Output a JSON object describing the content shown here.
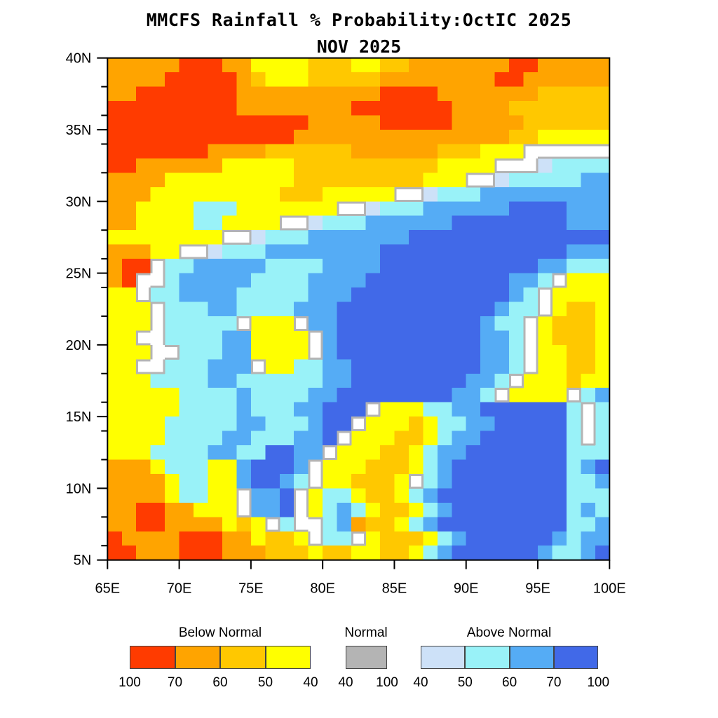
{
  "title": "MMCFS Rainfall % Probability:OctIC 2025",
  "subtitle": "NOV 2025",
  "axes": {
    "x_ticks": [
      "65E",
      "70E",
      "75E",
      "80E",
      "85E",
      "90E",
      "95E",
      "100E"
    ],
    "y_ticks": [
      "40N",
      "35N",
      "30N",
      "25N",
      "20N",
      "15N",
      "10N",
      "5N"
    ]
  },
  "legend": {
    "below": {
      "label": "Below Normal",
      "colors": [
        "#ff3b00",
        "#ffa400",
        "#ffc800",
        "#ffff00"
      ],
      "ticks": [
        "100",
        "70",
        "60",
        "50",
        "40"
      ]
    },
    "normal": {
      "label": "Normal",
      "colors": [
        "#b4b4b4"
      ],
      "ticks": [
        "40",
        "100"
      ]
    },
    "above": {
      "label": "Above Normal",
      "colors": [
        "#cde1f8",
        "#99f2f8",
        "#55acf5",
        "#4169e8"
      ],
      "ticks": [
        "40",
        "50",
        "60",
        "70",
        "100"
      ]
    }
  },
  "chart_data": {
    "type": "heatmap",
    "description": "Filled-contour tercile probability map (percent) of rainfall over the India region. Warm colors = Below Normal probability, gray = Normal, blues = Above Normal. Grid is 1-degree cells, rows from 40N (top) to 5N (bottom), columns 65E to 100E.",
    "lon_range": [
      65,
      100
    ],
    "lat_range": [
      5,
      40
    ],
    "cell_degrees": 1,
    "palette": {
      "R": "#ff3b00",
      "O": "#ffa400",
      "G": "#ffc800",
      "Y": "#ffff00",
      "W": "#ffffff",
      "N": "#b4b4b4",
      "L": "#cde1f8",
      "C": "#99f2f8",
      "B": "#55acf5",
      "D": "#4169e8"
    },
    "palette_meaning": {
      "R": "below normal 70-100%",
      "O": "below normal 60-70%",
      "G": "below normal 50-60%",
      "Y": "below normal 40-50%",
      "W": "no category >= 40%",
      "N": "normal 40-100%",
      "L": "above normal 40-50%",
      "C": "above normal 50-60%",
      "B": "above normal 60-70%",
      "D": "above normal 70-100%"
    },
    "grid": [
      "OOOOORRROOYYYYGGGYYGGOOOOOOORROOOOO",
      "OOOORRRRROGYYYGGGGGOOOOOOOORROOOOOO",
      "OORRRRRRROOOOOOOOOORRRROOOOOOOGGGGG",
      "RRRRRRRRROOOOOOOORRRRRRROOOOGGGGGGG",
      "RRRRRRRRRRRRRROOOOORRRRROOOOOGGGGGG",
      "RRRRRRRRRRRRROOOOOOOOOOOOOOOGGYYYYY",
      "RRRRRRROOOOGGGGGGOOOOOOGGGYYYWWWWWW",
      "RROOOOOOYYYYYGGGGGGGGGGYYYYWWWLCCCC",
      "OOOOYYYYYYYYYGGGGGGGGGYYYWWLCCCCCBB",
      "OOOYYYYYYYYYGGGYYYYYWWLCCCBBBBBBBBB",
      "OOYYYYCCCYYYYYYYWWLCCCBBBBBBDDDDBBB",
      "OOYYYYCCYYYYWWLCCCBBBBBBDDDDDDDDBBB",
      "YYYYYYYYWWLCCCBBBBBBBDDDDDDDDDDDDDD",
      "OOOYYWWLCCCBBBBBBBBDDDDDDDDDDDDDBBB",
      "ORRWCCBBBBBCCCCBBBBDDDDDDDDDDDBBCCC",
      "ORWWCBBBBBCCCCBBBBDDDDDDDDDDBBCWYYY",
      "YYWCCBBBBCCCCCBBBDDDDDDDDDDDBCWYYYY",
      "YYYWCCCBBCCCCBBBDDDDDDDDDDDBCCWYGGY",
      "YYYWCCCCCWYYYWBBDDDDDDDDDDBCCWYGGGY",
      "YYWWCCCCBBYYYYWBDDDDDDDDDDBBCWYGGGY",
      "YYYWWCCCBBYYYYWBDDDDDDDDDDBBCWYYGGY",
      "YYWWCCCBBBWYYCCBBDDDDDDDDDBBCWYYGGY",
      "YYYCCCCBBCCCCCCBBDDDDDDDDBBCWYYYGYY",
      "YYYYYCCCCBCCCCBBDDDDDDDDBBCWYYYYWCB",
      "YYYYYCCCCBCCCBBDDDWYYYCCBBDDDDDDCWC",
      "YYYYCCCCCBBCCCBDDWYYYGYCCBBDDDDDCWC",
      "YYYYCCCCBBCCCBBDWYYYGGYCBBDDDDDDCWC",
      "YYYCCCCBBCCDDBBWYYYGGYCBBDDDDDDDCCC",
      "OOOYCCCYYBDDDBWYYYGGGYCBDDDDDDDDCBD",
      "OOOOYCCYYBDDBCWYYGGGYWCBDDDDDDDDCCB",
      "OOOOYCCYYWBBDWYCCYGGYCBDDDDDDDDDCCC",
      "OORROOYYYWBBDWYCBCYGGYCBDDDDDDDDCBC",
      "OORROOOOYGYWCWWCBOGGYCBDDDDDDDDDCCB",
      "ROOOORRROOYGGYWCCWYGGGYCBDDDDDDBCBB",
      "RROOORRROOOGGGYGGYYGGYCBDDDDDDBCCBD"
    ]
  }
}
